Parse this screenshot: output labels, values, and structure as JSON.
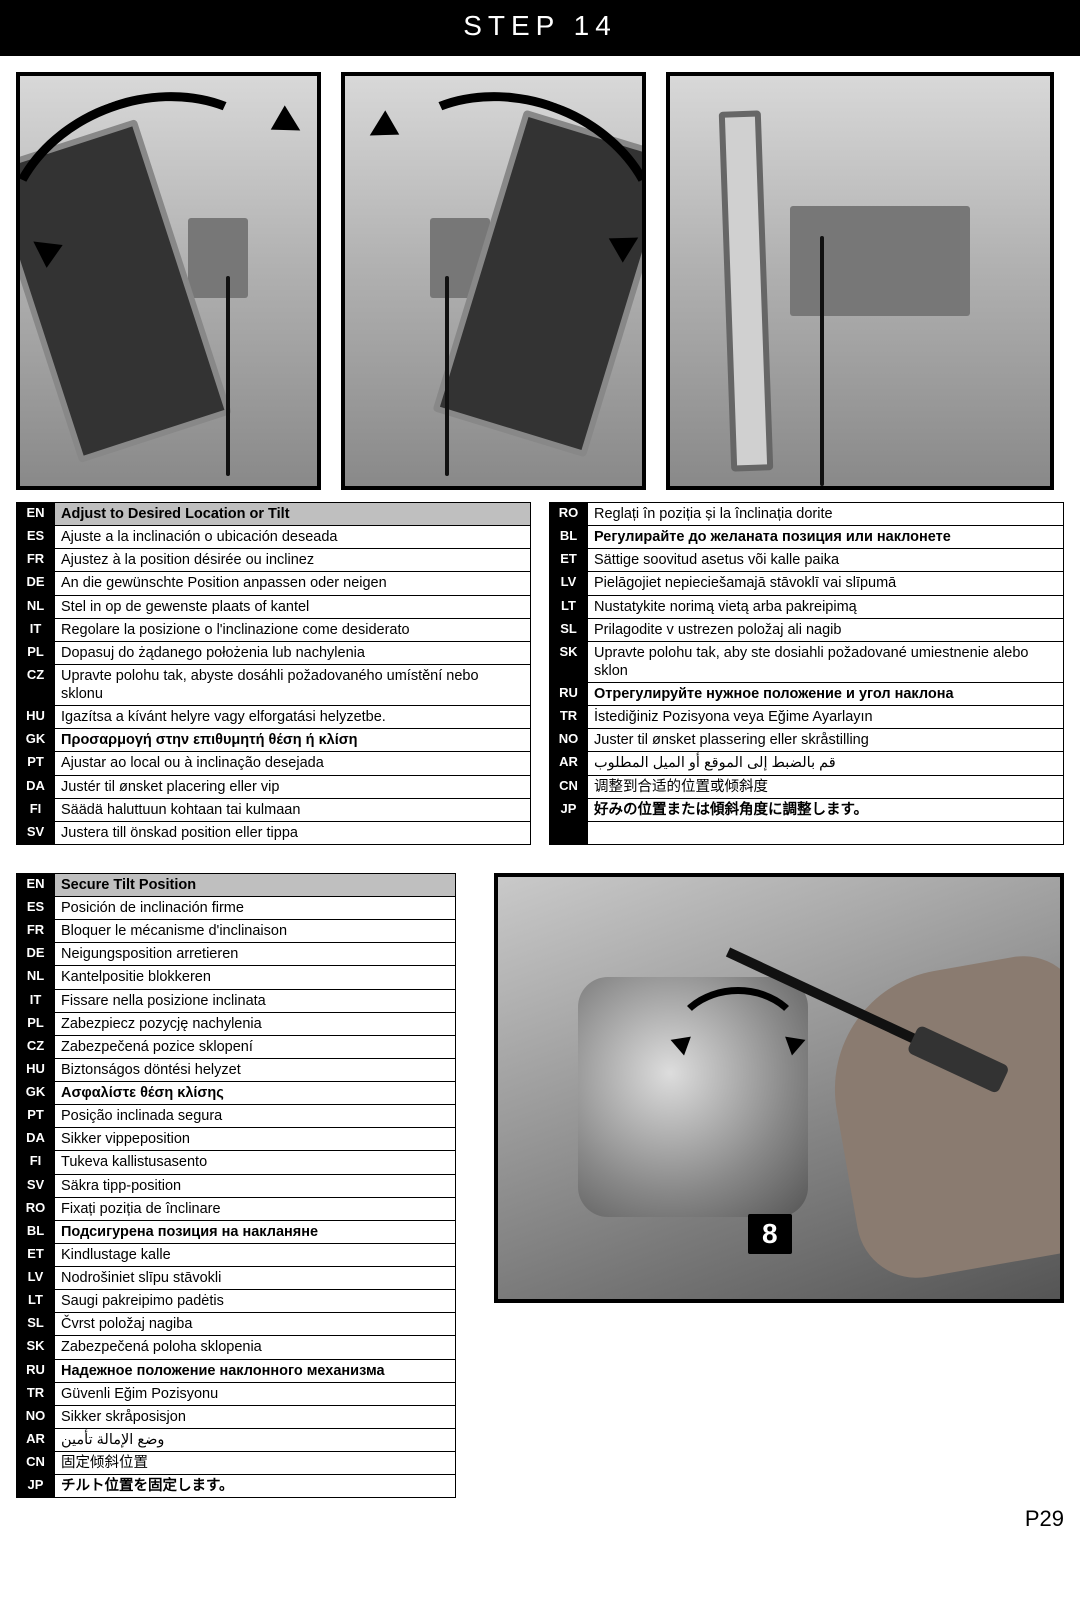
{
  "header": "STEP 14",
  "page_number": "P29",
  "callout_number": "8",
  "colors": {
    "header_bg": "#000000",
    "header_fg": "#ffffff",
    "code_bg": "#000000",
    "code_fg": "#ffffff",
    "highlight_bg": "#bfbfbf",
    "border": "#000000"
  },
  "table1_left": [
    {
      "code": "EN",
      "text": "Adjust to Desired Location or Tilt",
      "hl": true
    },
    {
      "code": "ES",
      "text": "Ajuste a la inclinación o ubicación deseada"
    },
    {
      "code": "FR",
      "text": "Ajustez à la position désirée ou inclinez"
    },
    {
      "code": "DE",
      "text": "An die gewünschte Position anpassen oder neigen"
    },
    {
      "code": "NL",
      "text": "Stel in op de gewenste plaats of kantel"
    },
    {
      "code": "IT",
      "text": "Regolare la posizione o l'inclinazione come desiderato"
    },
    {
      "code": "PL",
      "text": "Dopasuj do żądanego położenia lub nachylenia"
    },
    {
      "code": "CZ",
      "text": "Upravte polohu tak, abyste dosáhli požadovaného umístění nebo sklonu"
    },
    {
      "code": "HU",
      "text": "Igazítsa a kívánt helyre vagy elforgatási helyzetbe."
    },
    {
      "code": "GK",
      "text": "Προσαρμογή στην επιθυμητή θέση ή κλίση",
      "bold": true
    },
    {
      "code": "PT",
      "text": "Ajustar ao local ou à inclinação  desejada"
    },
    {
      "code": "DA",
      "text": "Justér til ønsket placering eller vip"
    },
    {
      "code": "FI",
      "text": "Säädä haluttuun kohtaan tai kulmaan"
    },
    {
      "code": "SV",
      "text": "Justera till önskad position eller tippa"
    }
  ],
  "table1_right": [
    {
      "code": "RO",
      "text": "Reglați în poziția și la înclinația dorite"
    },
    {
      "code": "BL",
      "text": "Регулирайте до желаната позиция или наклонете",
      "bold": true
    },
    {
      "code": "ET",
      "text": "Sättige soovitud asetus või kalle paika"
    },
    {
      "code": "LV",
      "text": "Pielāgojiet nepieciešamajā stāvoklī vai slīpumā"
    },
    {
      "code": "LT",
      "text": "Nustatykite norimą vietą arba pakreipimą"
    },
    {
      "code": "SL",
      "text": "Prilagodite v ustrezen položaj ali nagib"
    },
    {
      "code": "SK",
      "text": "Upravte polohu tak, aby ste dosiahli požadované umiestnenie alebo sklon"
    },
    {
      "code": "RU",
      "text": "Отрегулируйте нужное положение и угол наклона",
      "bold": true
    },
    {
      "code": "TR",
      "text": "İstediğiniz Pozisyona veya Eğime Ayarlayın"
    },
    {
      "code": "NO",
      "text": "Juster til ønsket plassering eller skråstilling"
    },
    {
      "code": "AR",
      "text": "قم بالضبط إلى الموقع أو الميل المطلوب"
    },
    {
      "code": "CN",
      "text": "调整到合适的位置或倾斜度"
    },
    {
      "code": "JP",
      "text": "好みの位置または傾斜角度に調整します。",
      "bold": true
    },
    {
      "code": "",
      "text": ""
    }
  ],
  "table2": [
    {
      "code": "EN",
      "text": "Secure Tilt Position",
      "hl": true
    },
    {
      "code": "ES",
      "text": "Posición de inclinación firme"
    },
    {
      "code": "FR",
      "text": "Bloquer le mécanisme d'inclinaison"
    },
    {
      "code": "DE",
      "text": "Neigungsposition arretieren"
    },
    {
      "code": "NL",
      "text": "Kantelpositie blokkeren"
    },
    {
      "code": "IT",
      "text": "Fissare nella posizione inclinata"
    },
    {
      "code": "PL",
      "text": "Zabezpiecz pozycję nachylenia"
    },
    {
      "code": "CZ",
      "text": "Zabezpečená pozice sklopení"
    },
    {
      "code": "HU",
      "text": "Biztonságos döntési helyzet"
    },
    {
      "code": "GK",
      "text": "Ασφαλίστε θέση κλίσης",
      "bold": true
    },
    {
      "code": "PT",
      "text": "Posição inclinada segura"
    },
    {
      "code": "DA",
      "text": "Sikker vippeposition"
    },
    {
      "code": "FI",
      "text": "Tukeva kallistusasento"
    },
    {
      "code": "SV",
      "text": "Säkra tipp-position"
    },
    {
      "code": "RO",
      "text": "Fixați poziția de înclinare"
    },
    {
      "code": "BL",
      "text": "Подсигурена позиция на накланяне",
      "bold": true
    },
    {
      "code": "ET",
      "text": "Kindlustage kalle"
    },
    {
      "code": "LV",
      "text": "Nodrošiniet slīpu stāvokli"
    },
    {
      "code": "LT",
      "text": "Saugi pakreipimo padėtis"
    },
    {
      "code": "SL",
      "text": "Čvrst položaj nagiba"
    },
    {
      "code": "SK",
      "text": "Zabezpečená poloha sklopenia"
    },
    {
      "code": "RU",
      "text": "Надежное положение наклонного механизма",
      "bold": true
    },
    {
      "code": "TR",
      "text": "Güvenli Eğim Pozisyonu"
    },
    {
      "code": "NO",
      "text": "Sikker skråposisjon"
    },
    {
      "code": "AR",
      "text": "وضع الإمالة تأمين"
    },
    {
      "code": "CN",
      "text": "固定倾斜位置"
    },
    {
      "code": "JP",
      "text": "チルト位置を固定します。",
      "bold": true
    }
  ]
}
